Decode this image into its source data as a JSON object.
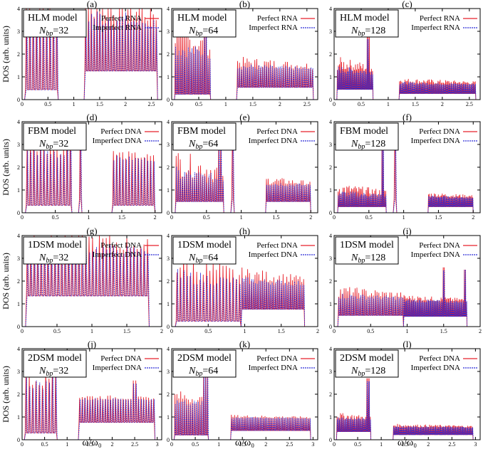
{
  "figure": {
    "ylabel": "DOS (arb. units)",
    "xlabel": "ω/ω₀"
  },
  "chart_data": [
    {
      "type": "line",
      "panel": "(a)",
      "model": "HLM model",
      "nbp_prefix": "N",
      "nbp_sub": "bp",
      "nbp_value": "=32",
      "series": [
        {
          "name": "Perfect RNA",
          "color": "#e8202a"
        },
        {
          "name": "Imperfect RNA",
          "color": "#2b2bd6"
        }
      ],
      "xlim": [
        0,
        2.7
      ],
      "ylim": [
        0,
        4
      ],
      "xticks": [
        "0",
        "0.5",
        "1",
        "1.5",
        "2",
        "2.5"
      ],
      "yticks": [
        "0",
        "1",
        "2",
        "3",
        "4"
      ],
      "bands": [
        {
          "from": 0.05,
          "to": 0.7,
          "n": 10,
          "base": 2.9,
          "amp": 2.5,
          "peakAt": 0.62,
          "peakH": 3.9
        },
        {
          "from": 1.2,
          "to": 2.62,
          "n": 26,
          "base": 2.8,
          "amp": 2.5
        }
      ]
    },
    {
      "type": "line",
      "panel": "(b)",
      "model": "HLM model",
      "nbp_prefix": "N",
      "nbp_sub": "bp",
      "nbp_value": "=64",
      "series": [
        {
          "name": "Perfect RNA",
          "color": "#e8202a"
        },
        {
          "name": "Imperfect RNA",
          "color": "#2b2bd6"
        }
      ],
      "xlim": [
        0,
        2.7
      ],
      "ylim": [
        0,
        4
      ],
      "xticks": [
        "0",
        "0.5",
        "1",
        "1.5",
        "2",
        "2.5"
      ],
      "yticks": [
        "0",
        "1",
        "2",
        "3",
        "4"
      ],
      "bands": [
        {
          "from": 0.05,
          "to": 0.72,
          "n": 20,
          "base": 1.6,
          "amp": 1.8,
          "peakAt": 0.62,
          "peakH": 3.9
        },
        {
          "from": 1.2,
          "to": 2.62,
          "n": 40,
          "base": 1.2,
          "amp": 0.7
        }
      ]
    },
    {
      "type": "line",
      "panel": "(c)",
      "model": "HLM model",
      "nbp_prefix": "N",
      "nbp_sub": "bp",
      "nbp_value": "=128",
      "series": [
        {
          "name": "Perfect RNA",
          "color": "#e8202a"
        },
        {
          "name": "Imperfect RNA",
          "color": "#2b2bd6"
        }
      ],
      "xlim": [
        0,
        2.7
      ],
      "ylim": [
        0,
        4
      ],
      "xticks": [
        "0",
        "0.5",
        "1",
        "1.5",
        "2",
        "2.5"
      ],
      "yticks": [
        "0",
        "1",
        "2",
        "3",
        "4"
      ],
      "bands": [
        {
          "from": 0.05,
          "to": 0.72,
          "n": 34,
          "base": 1.0,
          "amp": 0.9,
          "peakAt": 0.63,
          "peakH": 2.8
        },
        {
          "from": 1.2,
          "to": 2.62,
          "n": 70,
          "base": 0.6,
          "amp": 0.35
        }
      ]
    },
    {
      "type": "line",
      "panel": "(d)",
      "model": "FBM model",
      "nbp_prefix": "N",
      "nbp_sub": "bp",
      "nbp_value": "=32",
      "series": [
        {
          "name": "Perfect DNA",
          "color": "#e8202a"
        },
        {
          "name": "Imperfect DNA",
          "color": "#2b2bd6"
        }
      ],
      "xlim": [
        0,
        2.1
      ],
      "ylim": [
        0,
        4
      ],
      "xticks": [
        "0",
        "0.5",
        "1",
        "1.5",
        "2"
      ],
      "yticks": [
        "0",
        "1",
        "2",
        "3",
        "4"
      ],
      "bands": [
        {
          "from": 0.05,
          "to": 0.75,
          "n": 14,
          "base": 2.2,
          "amp": 1.6,
          "peakAt": 0.7,
          "peakH": 3.9
        },
        {
          "from": 0.85,
          "to": 0.9,
          "n": 1,
          "base": 3.9,
          "amp": 0
        },
        {
          "from": 1.35,
          "to": 2.0,
          "n": 14,
          "base": 2.2,
          "amp": 0.6
        }
      ]
    },
    {
      "type": "line",
      "panel": "(e)",
      "model": "FBM model",
      "nbp_prefix": "N",
      "nbp_sub": "bp",
      "nbp_value": "=64",
      "series": [
        {
          "name": "Perfect DNA",
          "color": "#e8202a"
        },
        {
          "name": "Imperfect DNA",
          "color": "#2b2bd6"
        }
      ],
      "xlim": [
        0,
        2.1
      ],
      "ylim": [
        0,
        4
      ],
      "xticks": [
        "0",
        "0.5",
        "1",
        "1.5",
        "2"
      ],
      "yticks": [
        "0",
        "1",
        "2",
        "3",
        "4"
      ],
      "bands": [
        {
          "from": 0.05,
          "to": 0.75,
          "n": 24,
          "base": 1.1,
          "amp": 1.7,
          "peakAt": 0.7,
          "peakH": 3.9
        },
        {
          "from": 0.85,
          "to": 0.9,
          "n": 1,
          "base": 3.9,
          "amp": 0
        },
        {
          "from": 1.35,
          "to": 2.0,
          "n": 26,
          "base": 1.1,
          "amp": 0.5
        }
      ]
    },
    {
      "type": "line",
      "panel": "(f)",
      "model": "FBM model",
      "nbp_prefix": "N",
      "nbp_sub": "bp",
      "nbp_value": "=128",
      "series": [
        {
          "name": "Perfect DNA",
          "color": "#e8202a"
        },
        {
          "name": "Imperfect DNA",
          "color": "#2b2bd6"
        }
      ],
      "xlim": [
        0,
        2.1
      ],
      "ylim": [
        0,
        4
      ],
      "xticks": [
        "0",
        "0.5",
        "1",
        "1.5",
        "2"
      ],
      "yticks": [
        "0",
        "1",
        "2",
        "3",
        "4"
      ],
      "bands": [
        {
          "from": 0.05,
          "to": 0.75,
          "n": 40,
          "base": 0.6,
          "amp": 0.7,
          "peakAt": 0.7,
          "peakH": 3.9
        },
        {
          "from": 0.85,
          "to": 0.9,
          "n": 1,
          "base": 3.9,
          "amp": 0
        },
        {
          "from": 1.35,
          "to": 2.0,
          "n": 46,
          "base": 0.6,
          "amp": 0.3
        }
      ]
    },
    {
      "type": "line",
      "panel": "(g)",
      "model": "1DSM model",
      "nbp_prefix": "N",
      "nbp_sub": "bp",
      "nbp_value": "=32",
      "series": [
        {
          "name": "Perfect DNA",
          "color": "#e8202a"
        },
        {
          "name": "Imperfect DNA",
          "color": "#2b2bd6"
        }
      ],
      "xlim": [
        0,
        2
      ],
      "ylim": [
        0,
        4
      ],
      "xticks": [
        "0",
        "0.5",
        "1",
        "1.5",
        "2"
      ],
      "yticks": [
        "0",
        "1",
        "2",
        "3",
        "4"
      ],
      "bands": [
        {
          "from": 0.05,
          "to": 1.82,
          "n": 36,
          "base": 3.0,
          "amp": 1.5
        }
      ]
    },
    {
      "type": "line",
      "panel": "(h)",
      "model": "1DSM model",
      "nbp_prefix": "N",
      "nbp_sub": "bp",
      "nbp_value": "=64",
      "series": [
        {
          "name": "Perfect DNA",
          "color": "#e8202a"
        },
        {
          "name": "Imperfect DNA",
          "color": "#2b2bd6"
        }
      ],
      "xlim": [
        0,
        2
      ],
      "ylim": [
        0,
        4
      ],
      "xticks": [
        "0",
        "0.5",
        "1",
        "1.5",
        "2"
      ],
      "yticks": [
        "0",
        "1",
        "2",
        "3",
        "4"
      ],
      "bands": [
        {
          "from": 0.05,
          "to": 0.95,
          "n": 20,
          "base": 1.6,
          "amp": 1.7
        },
        {
          "from": 0.95,
          "to": 1.82,
          "n": 34,
          "base": 1.7,
          "amp": 0.9
        }
      ]
    },
    {
      "type": "line",
      "panel": "(i)",
      "model": "1DSM model",
      "nbp_prefix": "N",
      "nbp_sub": "bp",
      "nbp_value": "=128",
      "series": [
        {
          "name": "Perfect DNA",
          "color": "#e8202a"
        },
        {
          "name": "Imperfect DNA",
          "color": "#2b2bd6"
        }
      ],
      "xlim": [
        0,
        2
      ],
      "ylim": [
        0,
        4
      ],
      "xticks": [
        "0",
        "0.5",
        "1",
        "1.5",
        "2"
      ],
      "yticks": [
        "0",
        "1",
        "2",
        "3",
        "4"
      ],
      "bands": [
        {
          "from": 0.05,
          "to": 0.95,
          "n": 36,
          "base": 1.1,
          "amp": 0.7
        },
        {
          "from": 0.95,
          "to": 1.82,
          "n": 60,
          "base": 1.0,
          "amp": 0.4,
          "peakAt": 1.5,
          "peakH": 2.6,
          "peak2At": 1.79,
          "peak2H": 2.5
        }
      ]
    },
    {
      "type": "line",
      "panel": "(j)",
      "model": "2DSM model",
      "nbp_prefix": "N",
      "nbp_sub": "bp",
      "nbp_value": "=32",
      "series": [
        {
          "name": "Perfect DNA",
          "color": "#e8202a"
        },
        {
          "name": "Imperfect DNA",
          "color": "#2b2bd6"
        }
      ],
      "xlim": [
        0,
        3.1
      ],
      "ylim": [
        0,
        4
      ],
      "xticks": [
        "0",
        "0.5",
        "1",
        "1.5",
        "2",
        "2.5",
        "3"
      ],
      "yticks": [
        "0",
        "1",
        "2",
        "3",
        "4"
      ],
      "bands": [
        {
          "from": 0.05,
          "to": 0.78,
          "n": 10,
          "base": 2.0,
          "amp": 1.5,
          "peakAt": 0.7,
          "peakH": 3.0
        },
        {
          "from": 1.25,
          "to": 2.95,
          "n": 30,
          "base": 1.7,
          "amp": 0.3,
          "peakAt": 2.5,
          "peakH": 2.6
        }
      ]
    },
    {
      "type": "line",
      "panel": "(k)",
      "model": "2DSM model",
      "nbp_prefix": "N",
      "nbp_sub": "bp",
      "nbp_value": "=64",
      "series": [
        {
          "name": "Perfect DNA",
          "color": "#e8202a"
        },
        {
          "name": "Imperfect DNA",
          "color": "#2b2bd6"
        }
      ],
      "xlim": [
        0,
        3.1
      ],
      "ylim": [
        0,
        4
      ],
      "xticks": [
        "0",
        "0.5",
        "1",
        "1.5",
        "2",
        "2.5",
        "3"
      ],
      "yticks": [
        "0",
        "1",
        "2",
        "3",
        "4"
      ],
      "bands": [
        {
          "from": 0.05,
          "to": 0.78,
          "n": 18,
          "base": 1.4,
          "amp": 0.8,
          "peakAt": 0.72,
          "peakH": 3.1
        },
        {
          "from": 1.25,
          "to": 2.95,
          "n": 50,
          "base": 0.9,
          "amp": 0.2
        }
      ]
    },
    {
      "type": "line",
      "panel": "(l)",
      "model": "2DSM model",
      "nbp_prefix": "N",
      "nbp_sub": "bp",
      "nbp_value": "=128",
      "series": [
        {
          "name": "Perfect DNA",
          "color": "#e8202a"
        },
        {
          "name": "Imperfect DNA",
          "color": "#2b2bd6"
        }
      ],
      "xlim": [
        0,
        3.1
      ],
      "ylim": [
        0,
        4
      ],
      "xticks": [
        "0",
        "0.5",
        "1",
        "1.5",
        "2",
        "2.5",
        "3"
      ],
      "yticks": [
        "0",
        "1",
        "2",
        "3",
        "4"
      ],
      "bands": [
        {
          "from": 0.05,
          "to": 0.78,
          "n": 30,
          "base": 0.8,
          "amp": 0.4,
          "peakAt": 0.72,
          "peakH": 2.7
        },
        {
          "from": 1.25,
          "to": 2.95,
          "n": 80,
          "base": 0.5,
          "amp": 0.2
        }
      ]
    }
  ]
}
